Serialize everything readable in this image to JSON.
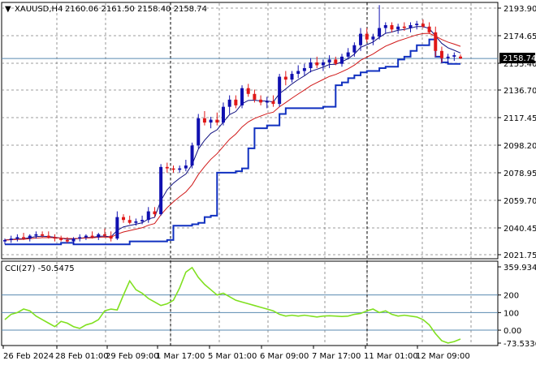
{
  "main_panel": {
    "symbol_label": "XAUUSD,H4",
    "ohlc_text": "2160.06 2161.50 2158.40 2158.74",
    "price_badge": "2158.74",
    "price_ticks": [
      "2193.90",
      "2174.65",
      "2155.40",
      "2136.70",
      "2117.45",
      "2098.20",
      "2078.95",
      "2059.70",
      "2040.45",
      "2021.75"
    ]
  },
  "cci_panel": {
    "label": "CCI(27) -50.5475",
    "ticks": [
      "359.9345",
      "200",
      "100",
      "0.00",
      "-73.5336"
    ]
  },
  "time_labels": [
    "26 Feb 2024",
    "28 Feb 01:00",
    "29 Feb 09:00",
    "1 Mar 17:00",
    "5 Mar 01:00",
    "6 Mar 09:00",
    "7 Mar 17:00",
    "11 Mar 01:00",
    "12 Mar 09:00"
  ],
  "colors": {
    "bull": "#1010b0",
    "bear": "#e01818",
    "ma_fast": "#d01818",
    "ma_slow": "#101080",
    "stop_line": "#1030c0",
    "cci": "#80e020",
    "price_level": "#5a8ab0",
    "grid": "#7d7d7d"
  },
  "chart_data": {
    "type": "candlestick",
    "symbol": "XAUUSD",
    "timeframe": "H4",
    "last_ohlc": {
      "open": 2160.06,
      "high": 2161.5,
      "low": 2158.4,
      "close": 2158.74
    },
    "candles": [
      [
        2031,
        2033,
        2029,
        2032
      ],
      [
        2032,
        2035,
        2030,
        2033
      ],
      [
        2033,
        2036,
        2031,
        2034
      ],
      [
        2034,
        2037,
        2032,
        2033
      ],
      [
        2033,
        2036,
        2031,
        2035
      ],
      [
        2035,
        2038,
        2033,
        2036
      ],
      [
        2036,
        2038,
        2034,
        2035
      ],
      [
        2035,
        2038,
        2033,
        2034
      ],
      [
        2034,
        2036,
        2031,
        2033
      ],
      [
        2033,
        2035,
        2031,
        2032
      ],
      [
        2032,
        2034,
        2030,
        2031
      ],
      [
        2031,
        2034,
        2029,
        2033
      ],
      [
        2033,
        2036,
        2031,
        2034
      ],
      [
        2034,
        2036,
        2032,
        2035
      ],
      [
        2035,
        2038,
        2033,
        2034
      ],
      [
        2034,
        2037,
        2032,
        2036
      ],
      [
        2036,
        2040,
        2034,
        2035
      ],
      [
        2035,
        2038,
        2031,
        2033
      ],
      [
        2033,
        2052,
        2032,
        2048
      ],
      [
        2048,
        2050,
        2044,
        2046
      ],
      [
        2046,
        2049,
        2043,
        2044
      ],
      [
        2044,
        2047,
        2042,
        2045
      ],
      [
        2045,
        2049,
        2043,
        2046
      ],
      [
        2046,
        2055,
        2044,
        2052
      ],
      [
        2052,
        2055,
        2048,
        2050
      ],
      [
        2050,
        2085,
        2049,
        2083
      ],
      [
        2083,
        2086,
        2079,
        2082
      ],
      [
        2082,
        2084,
        2079,
        2081
      ],
      [
        2081,
        2084,
        2079,
        2082
      ],
      [
        2082,
        2088,
        2080,
        2084
      ],
      [
        2084,
        2100,
        2082,
        2098
      ],
      [
        2098,
        2120,
        2096,
        2117
      ],
      [
        2117,
        2122,
        2112,
        2114
      ],
      [
        2114,
        2118,
        2110,
        2116
      ],
      [
        2116,
        2121,
        2112,
        2114
      ],
      [
        2114,
        2128,
        2112,
        2125
      ],
      [
        2125,
        2133,
        2120,
        2130
      ],
      [
        2130,
        2133,
        2124,
        2126
      ],
      [
        2126,
        2140,
        2124,
        2138
      ],
      [
        2138,
        2141,
        2132,
        2134
      ],
      [
        2134,
        2137,
        2128,
        2130
      ],
      [
        2130,
        2133,
        2126,
        2128
      ],
      [
        2128,
        2132,
        2124,
        2129
      ],
      [
        2129,
        2133,
        2125,
        2127
      ],
      [
        2127,
        2148,
        2125,
        2146
      ],
      [
        2146,
        2150,
        2140,
        2144
      ],
      [
        2144,
        2150,
        2142,
        2148
      ],
      [
        2148,
        2154,
        2145,
        2150
      ],
      [
        2150,
        2155,
        2147,
        2152
      ],
      [
        2152,
        2159,
        2149,
        2156
      ],
      [
        2156,
        2160,
        2152,
        2154
      ],
      [
        2154,
        2158,
        2150,
        2156
      ],
      [
        2156,
        2161,
        2152,
        2158
      ],
      [
        2158,
        2160,
        2154,
        2155
      ],
      [
        2155,
        2162,
        2153,
        2160
      ],
      [
        2160,
        2166,
        2158,
        2163
      ],
      [
        2163,
        2170,
        2160,
        2168
      ],
      [
        2168,
        2180,
        2164,
        2176
      ],
      [
        2176,
        2180,
        2170,
        2172
      ],
      [
        2172,
        2176,
        2168,
        2174
      ],
      [
        2174,
        2196,
        2172,
        2180
      ],
      [
        2180,
        2184,
        2176,
        2182
      ],
      [
        2182,
        2184,
        2177,
        2179
      ],
      [
        2179,
        2183,
        2176,
        2181
      ],
      [
        2181,
        2184,
        2178,
        2180
      ],
      [
        2180,
        2184,
        2177,
        2182
      ],
      [
        2182,
        2185,
        2179,
        2183
      ],
      [
        2183,
        2186,
        2180,
        2181
      ],
      [
        2181,
        2184,
        2176,
        2177
      ],
      [
        2177,
        2181,
        2160,
        2164
      ],
      [
        2164,
        2167,
        2156,
        2159
      ],
      [
        2159,
        2162,
        2155,
        2160
      ],
      [
        2160,
        2163,
        2157,
        2161
      ],
      [
        2160.06,
        2161.5,
        2158.4,
        2158.74
      ]
    ],
    "cci": [
      60,
      90,
      100,
      120,
      110,
      80,
      60,
      40,
      20,
      50,
      40,
      20,
      10,
      30,
      40,
      60,
      110,
      120,
      115,
      200,
      280,
      230,
      210,
      180,
      160,
      140,
      150,
      170,
      240,
      330,
      356,
      300,
      260,
      230,
      200,
      210,
      190,
      170,
      160,
      150,
      140,
      130,
      120,
      110,
      90,
      80,
      85,
      80,
      85,
      80,
      75,
      80,
      82,
      80,
      78,
      80,
      90,
      95,
      110,
      120,
      100,
      110,
      90,
      80,
      85,
      80,
      75,
      60,
      30,
      -20,
      -60,
      -73,
      -65,
      -50.5475
    ],
    "ylim_price": [
      2021.75,
      2193.9
    ],
    "ylim_cci": [
      -73.5336,
      359.9345
    ],
    "levels_cci": [
      200,
      100,
      0
    ],
    "grid": true
  }
}
